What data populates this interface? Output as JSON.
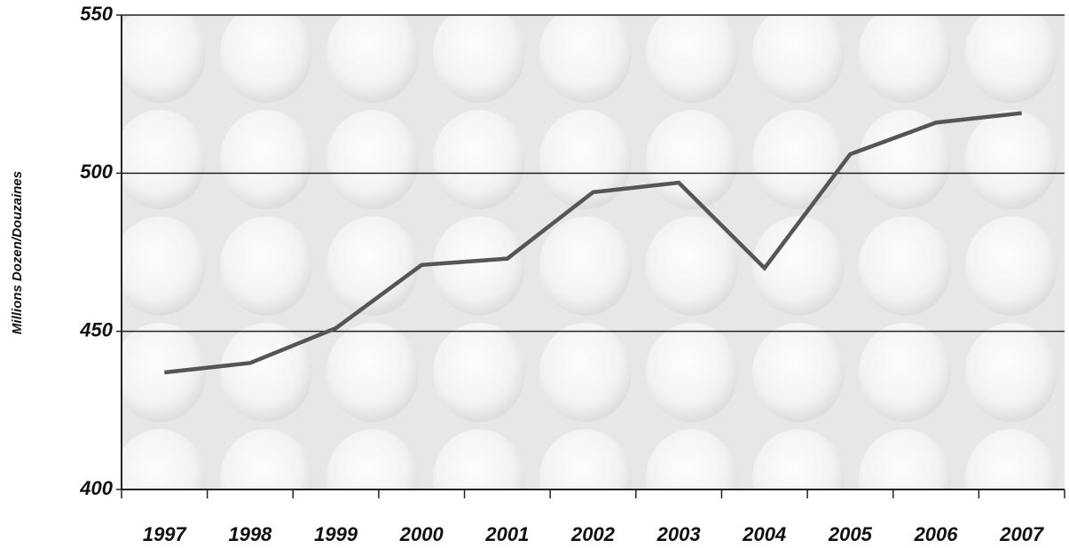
{
  "chart_data": {
    "type": "line",
    "y_label": "Millions Dozen/Douzaines",
    "categories": [
      "1997",
      "1998",
      "1999",
      "2000",
      "2001",
      "2002",
      "2003",
      "2004",
      "2005",
      "2006",
      "2007"
    ],
    "values": [
      437,
      440,
      451,
      471,
      473,
      494,
      497,
      470,
      506,
      516,
      519
    ],
    "color": "#555555",
    "ylim": [
      400,
      550
    ],
    "yticks": [
      400,
      450,
      500,
      550
    ],
    "grid": true
  }
}
